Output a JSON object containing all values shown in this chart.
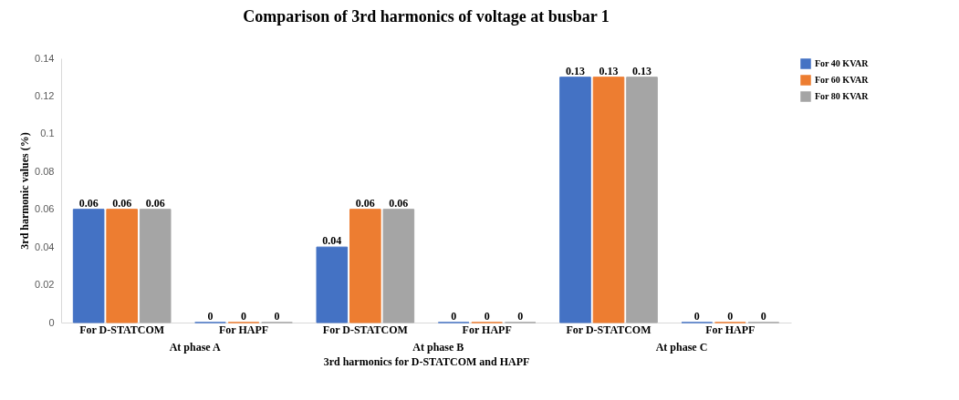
{
  "chart_data": {
    "type": "bar",
    "title": "Comparison of 3rd harmonics of voltage at busbar 1",
    "xlabel": "3rd harmonics for D-STATCOM and HAPF",
    "ylabel": "3rd harmonic values (%)",
    "categories": [
      "For D-STATCOM",
      "For HAPF",
      "For D-STATCOM",
      "For HAPF",
      "For D-STATCOM",
      "For HAPF"
    ],
    "series": [
      {
        "name": "For 40 KVAR",
        "color": "#4472c4",
        "values": [
          0.06,
          0,
          0.04,
          0,
          0.13,
          0
        ]
      },
      {
        "name": "For 60 KVAR",
        "color": "#ed7d31",
        "values": [
          0.06,
          0,
          0.06,
          0,
          0.13,
          0
        ]
      },
      {
        "name": "For 80 KVAR",
        "color": "#a5a5a5",
        "values": [
          0.06,
          0,
          0.06,
          0,
          0.13,
          0
        ]
      }
    ],
    "ylim": [
      0,
      0.14
    ],
    "yticks": [
      0,
      0.02,
      0.04,
      0.06,
      0.08,
      0.1,
      0.12,
      0.14
    ],
    "data_labels": true,
    "grid": false,
    "legend": "top right",
    "annotations": [
      "At phase A",
      "At phase B",
      "At phase C"
    ]
  }
}
